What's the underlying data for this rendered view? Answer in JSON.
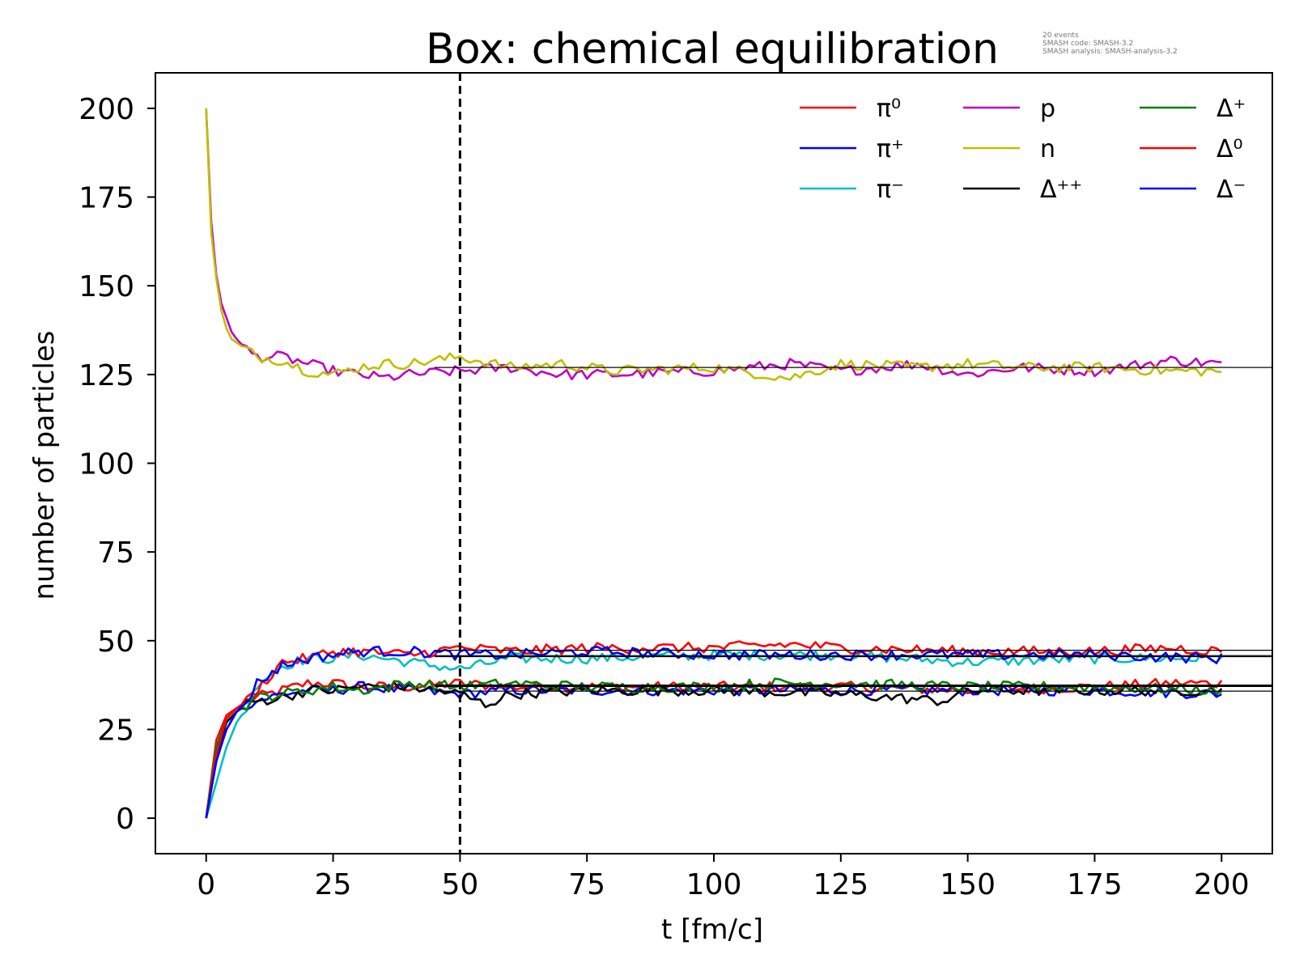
{
  "chart_data": {
    "type": "line",
    "title": "Box: chemical equilibration",
    "xlabel": "t [fm/c]",
    "ylabel": "number of particles",
    "xlim": [
      -10,
      210
    ],
    "ylim": [
      -10,
      210
    ],
    "xticks": [
      0,
      25,
      50,
      75,
      100,
      125,
      150,
      175,
      200
    ],
    "yticks": [
      0,
      25,
      50,
      75,
      100,
      125,
      150,
      175,
      200
    ],
    "grid": false,
    "legend_position": "top-right",
    "legend_columns": 3,
    "vertical_marker": {
      "x": 50,
      "style": "dashed",
      "color": "#000000"
    },
    "annotation_lines": [
      "20 events",
      "SMASH code:      SMASH-3.2",
      "SMASH analysis:  SMASH-analysis-3.2"
    ],
    "series": [
      {
        "name": "π⁰",
        "color": "#ff0000",
        "x": [
          0,
          2,
          4,
          6,
          8,
          10,
          15,
          20,
          25,
          30,
          40,
          50,
          60,
          75,
          100,
          115,
          125,
          150,
          175,
          190,
          200
        ],
        "y": [
          0,
          22,
          29,
          31,
          33,
          34,
          36,
          38,
          38,
          37,
          37,
          38,
          37,
          37,
          37,
          37,
          37,
          36,
          37,
          38,
          38
        ],
        "equilibrium": 37.5
      },
      {
        "name": "π⁺",
        "color": "#0000ff",
        "x": [
          0,
          2,
          4,
          6,
          8,
          10,
          15,
          20,
          25,
          30,
          40,
          50,
          60,
          75,
          100,
          125,
          150,
          175,
          200
        ],
        "y": [
          0,
          17,
          25,
          30,
          32,
          33,
          35,
          36,
          36,
          37,
          36,
          35,
          36,
          36,
          36,
          36,
          36,
          36,
          35
        ],
        "equilibrium": 35.8
      },
      {
        "name": "π⁻",
        "color": "#00bfbf",
        "x": [
          0,
          2,
          4,
          6,
          8,
          10,
          15,
          20,
          25,
          30,
          40,
          50,
          60,
          75,
          100,
          125,
          150,
          175,
          200
        ],
        "y": [
          0,
          10,
          20,
          27,
          31,
          38,
          43,
          45,
          45,
          46,
          44,
          42,
          45,
          45,
          46,
          46,
          44,
          45,
          45
        ],
        "equilibrium": 45.5
      },
      {
        "name": "p",
        "color": "#bf00bf",
        "x": [
          0,
          1,
          2,
          3,
          4,
          5,
          6,
          8,
          10,
          15,
          20,
          25,
          30,
          35,
          40,
          50,
          60,
          70,
          80,
          100,
          115,
          125,
          140,
          150,
          160,
          175,
          190,
          200
        ],
        "y": [
          200,
          168,
          153,
          145,
          141,
          137,
          135,
          132,
          130,
          130,
          128,
          126,
          125,
          124,
          125,
          126,
          127,
          125,
          125,
          126,
          128,
          126,
          128,
          125,
          127,
          126,
          129,
          128
        ],
        "equilibrium": 127
      },
      {
        "name": "n",
        "color": "#bfbf00",
        "x": [
          0,
          1,
          2,
          3,
          4,
          5,
          6,
          8,
          10,
          15,
          20,
          25,
          30,
          35,
          40,
          50,
          60,
          70,
          80,
          100,
          115,
          125,
          140,
          150,
          160,
          175,
          190,
          200
        ],
        "y": [
          200,
          165,
          152,
          143,
          138,
          135,
          134,
          132,
          130,
          129,
          126,
          125,
          127,
          128,
          128,
          130,
          127,
          128,
          126,
          127,
          124,
          128,
          127,
          128,
          127,
          127,
          126,
          126
        ],
        "equilibrium": 127
      },
      {
        "name": "Δ⁺⁺",
        "color": "#000000",
        "x": [
          0,
          2,
          4,
          6,
          8,
          10,
          15,
          20,
          25,
          30,
          40,
          50,
          55,
          60,
          75,
          100,
          125,
          145,
          150,
          175,
          200
        ],
        "y": [
          0,
          18,
          27,
          30,
          32,
          33,
          34,
          36,
          36,
          37,
          37,
          35,
          32,
          35,
          36,
          36,
          35,
          33,
          36,
          36,
          36
        ],
        "equilibrium": 37.1
      },
      {
        "name": "Δ⁺",
        "color": "#008000",
        "x": [
          0,
          2,
          4,
          6,
          8,
          10,
          15,
          20,
          25,
          30,
          40,
          50,
          60,
          75,
          100,
          110,
          125,
          150,
          175,
          200
        ],
        "y": [
          0,
          20,
          28,
          31,
          32,
          34,
          35,
          36,
          37,
          36,
          38,
          37,
          38,
          37,
          37,
          38,
          38,
          37,
          37,
          36
        ],
        "equilibrium": 37.3
      },
      {
        "name": "Δ⁰",
        "color": "#ff0000",
        "x": [
          0,
          2,
          4,
          6,
          8,
          10,
          15,
          20,
          25,
          30,
          40,
          50,
          60,
          75,
          100,
          115,
          125,
          150,
          175,
          190,
          200
        ],
        "y": [
          0,
          18,
          28,
          31,
          33,
          36,
          44,
          45,
          47,
          47,
          46,
          48,
          47,
          48,
          48,
          49,
          48,
          47,
          47,
          48,
          47
        ],
        "equilibrium": 47.3
      },
      {
        "name": "Δ⁻",
        "color": "#0000ff",
        "x": [
          0,
          2,
          4,
          6,
          8,
          10,
          15,
          20,
          25,
          30,
          40,
          50,
          60,
          75,
          100,
          125,
          150,
          175,
          200
        ],
        "y": [
          0,
          16,
          25,
          30,
          33,
          38,
          43,
          45,
          46,
          47,
          47,
          46,
          46,
          47,
          46,
          46,
          46,
          46,
          45
        ],
        "equilibrium": 45.8
      }
    ]
  }
}
